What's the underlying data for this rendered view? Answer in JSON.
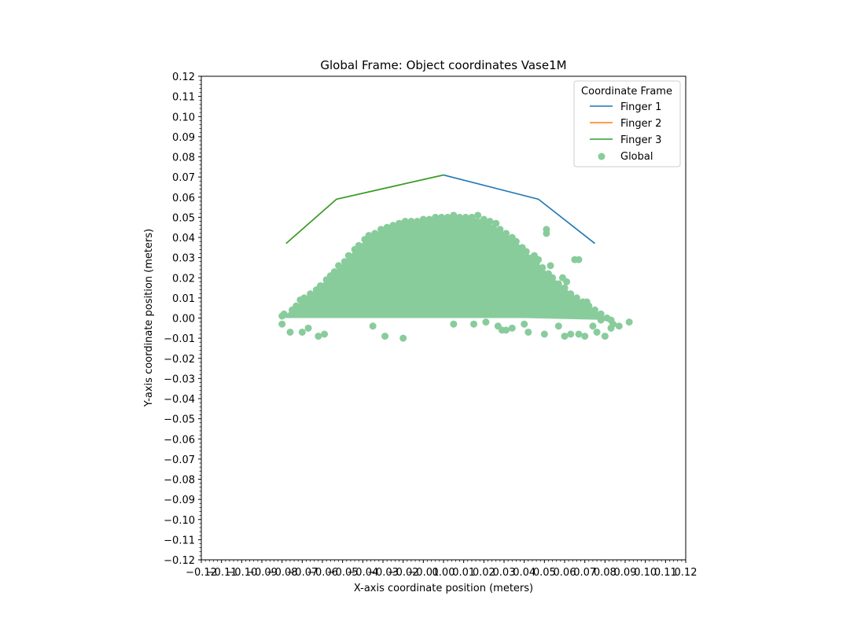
{
  "chart_data": {
    "type": "scatter",
    "title": "Global Frame: Object coordinates Vase1M",
    "xlabel": "X-axis coordinate position (meters)",
    "ylabel": "Y-axis coordinate position (meters)",
    "xlim": [
      -0.12,
      0.12
    ],
    "ylim": [
      -0.12,
      0.12
    ],
    "xticks": [
      "−0.12",
      "−0.11",
      "−0.10",
      "−0.09",
      "−0.08",
      "−0.07",
      "−0.06",
      "−0.05",
      "−0.04",
      "−0.03",
      "−0.02",
      "−0.01",
      "0.00",
      "0.01",
      "0.02",
      "0.03",
      "0.04",
      "0.05",
      "0.06",
      "0.07",
      "0.08",
      "0.09",
      "0.10",
      "0.11",
      "0.12"
    ],
    "yticks": [
      "−0.12",
      "−0.11",
      "−0.10",
      "−0.09",
      "−0.08",
      "−0.07",
      "−0.06",
      "−0.05",
      "−0.04",
      "−0.03",
      "−0.02",
      "−0.01",
      "0.00",
      "0.01",
      "0.02",
      "0.03",
      "0.04",
      "0.05",
      "0.06",
      "0.07",
      "0.08",
      "0.09",
      "0.10",
      "0.11",
      "0.12"
    ],
    "grid": false,
    "legend": {
      "title": "Coordinate Frame",
      "placement": "upper right",
      "entries": [
        "Finger 1",
        "Finger 2",
        "Finger 3",
        "Global"
      ]
    },
    "series": [
      {
        "name": "Finger 1",
        "kind": "line",
        "color": "#1f77b4",
        "x": [
          0.0,
          0.047,
          0.075
        ],
        "y": [
          0.071,
          0.059,
          0.037
        ]
      },
      {
        "name": "Finger 2",
        "kind": "line",
        "color": "#ff7f0e",
        "x": [
          -0.078,
          -0.053,
          0.0
        ],
        "y": [
          0.037,
          0.059,
          0.071
        ]
      },
      {
        "name": "Finger 3",
        "kind": "line",
        "color": "#2ca02c",
        "x": [
          -0.078,
          -0.053,
          0.0
        ],
        "y": [
          0.037,
          0.059,
          0.071
        ]
      },
      {
        "name": "Global",
        "kind": "scatter",
        "color": "#88cc9c",
        "points": [
          [
            -0.08,
            0.001
          ],
          [
            -0.08,
            -0.003
          ],
          [
            -0.076,
            -0.007
          ],
          [
            -0.07,
            -0.007
          ],
          [
            -0.067,
            -0.005
          ],
          [
            -0.062,
            -0.009
          ],
          [
            -0.059,
            -0.008
          ],
          [
            -0.035,
            -0.004
          ],
          [
            -0.029,
            -0.009
          ],
          [
            -0.02,
            -0.01
          ],
          [
            0.005,
            -0.003
          ],
          [
            0.015,
            -0.003
          ],
          [
            0.021,
            -0.002
          ],
          [
            0.027,
            -0.004
          ],
          [
            0.029,
            -0.006
          ],
          [
            0.031,
            -0.006
          ],
          [
            0.034,
            -0.005
          ],
          [
            0.04,
            -0.003
          ],
          [
            0.042,
            -0.007
          ],
          [
            0.05,
            -0.008
          ],
          [
            0.057,
            -0.004
          ],
          [
            0.06,
            -0.009
          ],
          [
            0.063,
            -0.008
          ],
          [
            0.067,
            -0.008
          ],
          [
            0.07,
            -0.009
          ],
          [
            0.074,
            -0.004
          ],
          [
            0.076,
            -0.007
          ],
          [
            0.08,
            -0.009
          ],
          [
            0.083,
            -0.001
          ],
          [
            0.083,
            -0.005
          ],
          [
            0.084,
            -0.003
          ],
          [
            0.087,
            -0.004
          ],
          [
            0.092,
            -0.002
          ],
          [
            0.078,
            -0.001
          ],
          [
            0.071,
            0.008
          ],
          [
            0.051,
            0.044
          ],
          [
            0.051,
            0.042
          ],
          [
            0.067,
            0.029
          ],
          [
            0.065,
            0.029
          ],
          [
            0.059,
            0.02
          ],
          [
            0.061,
            0.018
          ],
          [
            0.053,
            0.026
          ],
          [
            0.045,
            0.031
          ],
          [
            0.047,
            0.029
          ],
          [
            -0.079,
            0.002
          ],
          [
            -0.075,
            0.004
          ],
          [
            -0.073,
            0.006
          ],
          [
            -0.071,
            0.009
          ],
          [
            -0.069,
            0.01
          ],
          [
            -0.066,
            0.012
          ],
          [
            -0.063,
            0.014
          ],
          [
            -0.061,
            0.016
          ],
          [
            -0.058,
            0.019
          ],
          [
            -0.056,
            0.021
          ],
          [
            -0.054,
            0.023
          ],
          [
            -0.052,
            0.026
          ],
          [
            -0.049,
            0.028
          ],
          [
            -0.047,
            0.031
          ],
          [
            -0.044,
            0.034
          ],
          [
            -0.042,
            0.036
          ],
          [
            -0.039,
            0.039
          ],
          [
            -0.037,
            0.041
          ],
          [
            -0.034,
            0.042
          ],
          [
            -0.031,
            0.044
          ],
          [
            -0.028,
            0.045
          ],
          [
            -0.025,
            0.046
          ],
          [
            -0.022,
            0.047
          ],
          [
            -0.019,
            0.048
          ],
          [
            -0.016,
            0.048
          ],
          [
            -0.013,
            0.048
          ],
          [
            -0.01,
            0.049
          ],
          [
            -0.007,
            0.049
          ],
          [
            -0.004,
            0.05
          ],
          [
            -0.001,
            0.05
          ],
          [
            0.002,
            0.05
          ],
          [
            0.005,
            0.051
          ],
          [
            0.008,
            0.05
          ],
          [
            0.011,
            0.05
          ],
          [
            0.014,
            0.05
          ],
          [
            0.017,
            0.051
          ],
          [
            0.02,
            0.049
          ],
          [
            0.023,
            0.048
          ],
          [
            0.026,
            0.047
          ],
          [
            0.028,
            0.044
          ],
          [
            0.031,
            0.042
          ],
          [
            0.034,
            0.04
          ],
          [
            0.036,
            0.038
          ],
          [
            0.039,
            0.035
          ],
          [
            0.041,
            0.033
          ],
          [
            0.044,
            0.03
          ],
          [
            0.046,
            0.027
          ],
          [
            0.049,
            0.025
          ],
          [
            0.052,
            0.022
          ],
          [
            0.054,
            0.02
          ],
          [
            0.057,
            0.017
          ],
          [
            0.06,
            0.015
          ],
          [
            0.063,
            0.012
          ],
          [
            0.066,
            0.01
          ],
          [
            0.069,
            0.008
          ],
          [
            0.072,
            0.006
          ],
          [
            0.075,
            0.004
          ],
          [
            0.078,
            0.002
          ],
          [
            0.081,
            0.0
          ]
        ]
      }
    ]
  }
}
